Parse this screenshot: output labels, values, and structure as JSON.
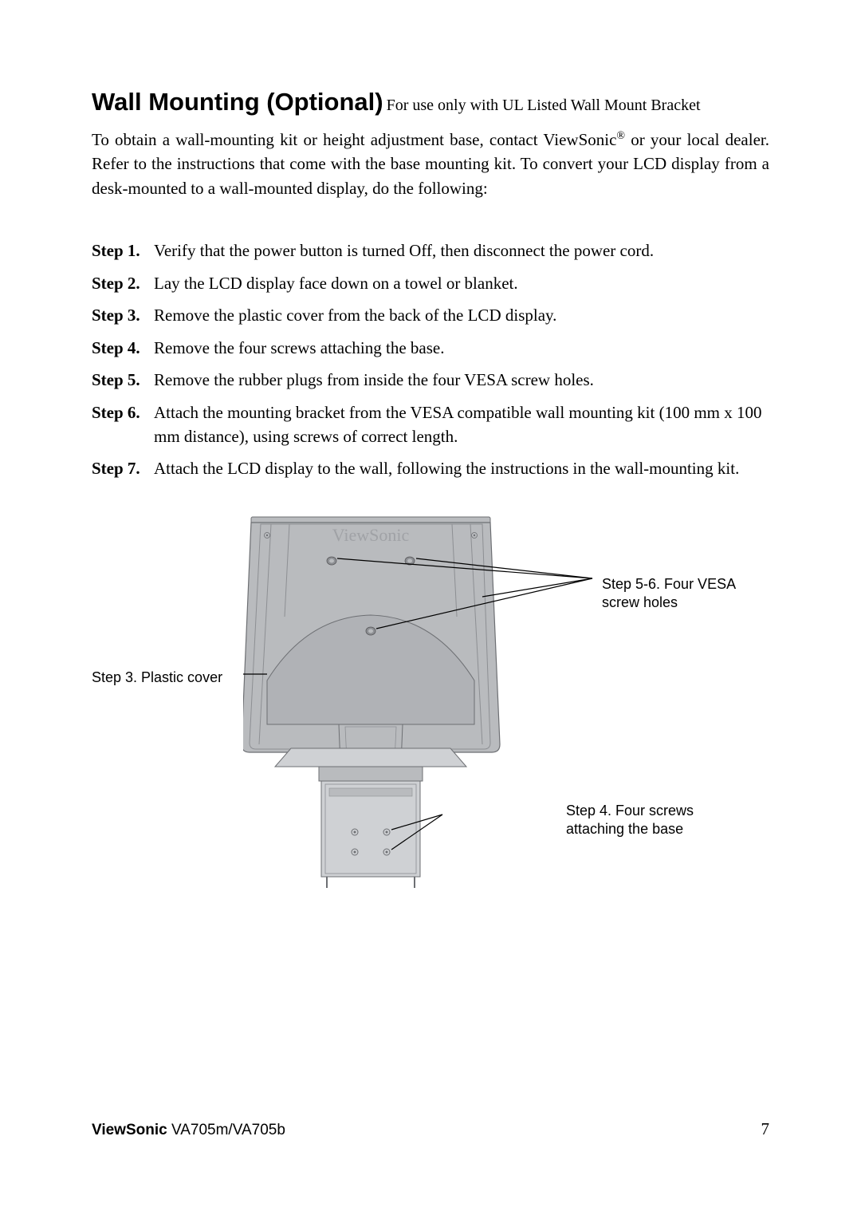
{
  "heading": {
    "main": "Wall Mounting (Optional)",
    "sub": "For use only with UL Listed Wall Mount Bracket"
  },
  "intro": {
    "pre": "To obtain a wall-mounting kit or height adjustment base, contact ViewSonic",
    "reg": "®",
    "post": " or your local dealer. Refer to the instructions that come with the base mounting kit. To convert your LCD display from a desk-mounted to a wall-mounted display, do the following:"
  },
  "steps": [
    {
      "label": "Step 1.",
      "text": "Verify that the power button is turned Off, then disconnect the power cord."
    },
    {
      "label": "Step 2.",
      "text": "Lay the LCD display face down on a towel or blanket."
    },
    {
      "label": "Step 3.",
      "text": "Remove the plastic cover from the back of the LCD display."
    },
    {
      "label": "Step 4.",
      "text": "Remove the four screws attaching the base."
    },
    {
      "label": "Step 5.",
      "text": "Remove the rubber plugs from inside the four VESA screw holes."
    },
    {
      "label": "Step 6.",
      "text": "Attach the mounting bracket from the VESA compatible wall mounting kit (100 mm x 100 mm distance), using screws of correct length."
    },
    {
      "label": "Step 7.",
      "text": "Attach the LCD display to the wall, following the instructions in the wall-mounting kit."
    }
  ],
  "callouts": {
    "left": "Step 3. Plastic cover",
    "rightTop": "Step 5-6. Four VESA screw holes",
    "rightBottom": "Step 4. Four screws attaching the base"
  },
  "diagram": {
    "logo": "ViewSonic",
    "colors": {
      "body": "#b9bbbe",
      "bodyDark": "#9fa2a6",
      "line": "#6d6f73",
      "lineDark": "#565659",
      "baseLight": "#cfd1d4",
      "text": "#a8aaae"
    }
  },
  "footer": {
    "brand": "ViewSonic",
    "model": "  VA705m/VA705b",
    "page": "7"
  }
}
